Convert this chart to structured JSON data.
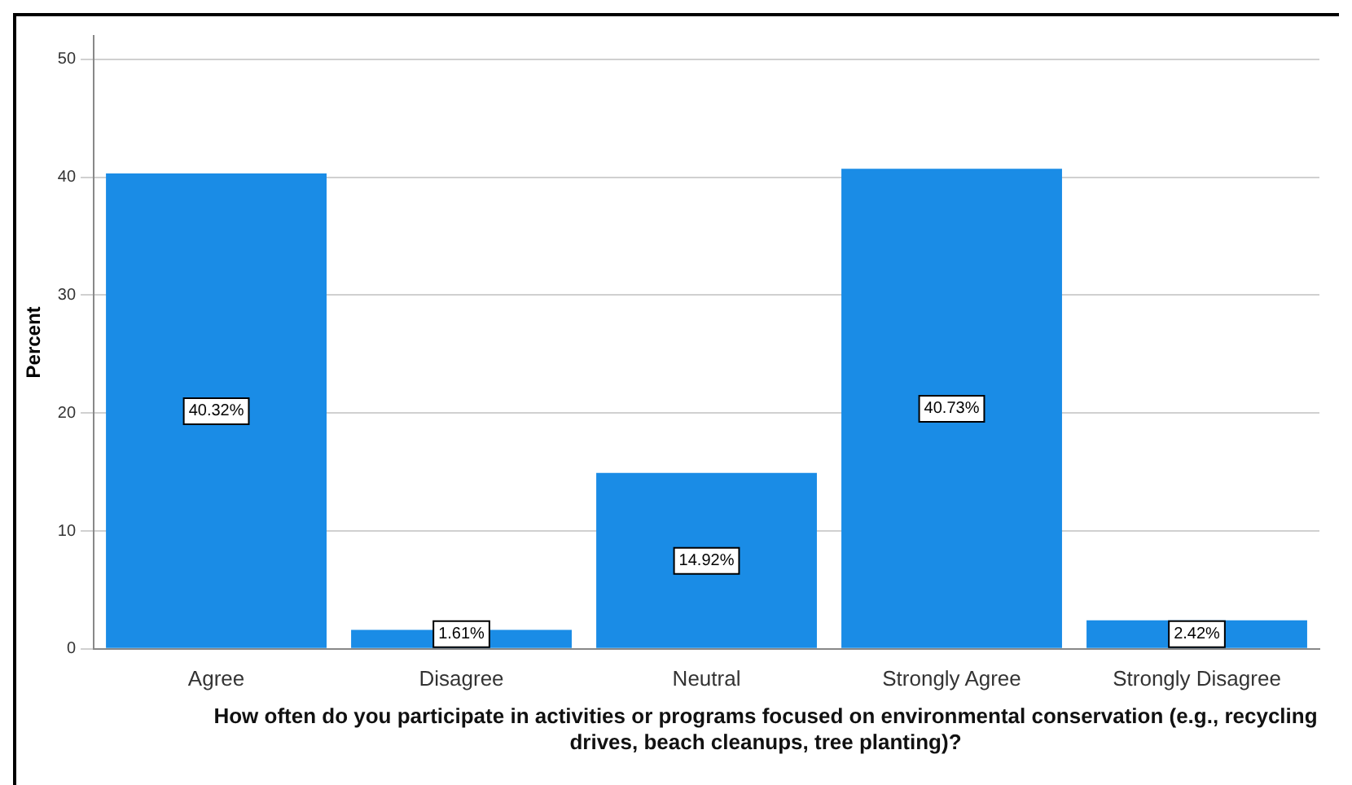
{
  "chart_data": {
    "type": "bar",
    "xlabel": "How often do you participate in activities or programs focused on environmental conservation (e.g., recycling drives, beach cleanups, tree planting)?",
    "ylabel": "Percent",
    "categories": [
      "Agree",
      "Disagree",
      "Neutral",
      "Strongly Agree",
      "Strongly Disagree"
    ],
    "values": [
      40.32,
      1.61,
      14.92,
      40.73,
      2.42
    ],
    "value_labels": [
      "40.32%",
      "1.61%",
      "14.92%",
      "40.73%",
      "2.42%"
    ],
    "color": "#1a8ce6",
    "ylim": [
      0,
      52
    ],
    "yticks": [
      0,
      10,
      20,
      30,
      40,
      50
    ],
    "grid": "y"
  }
}
